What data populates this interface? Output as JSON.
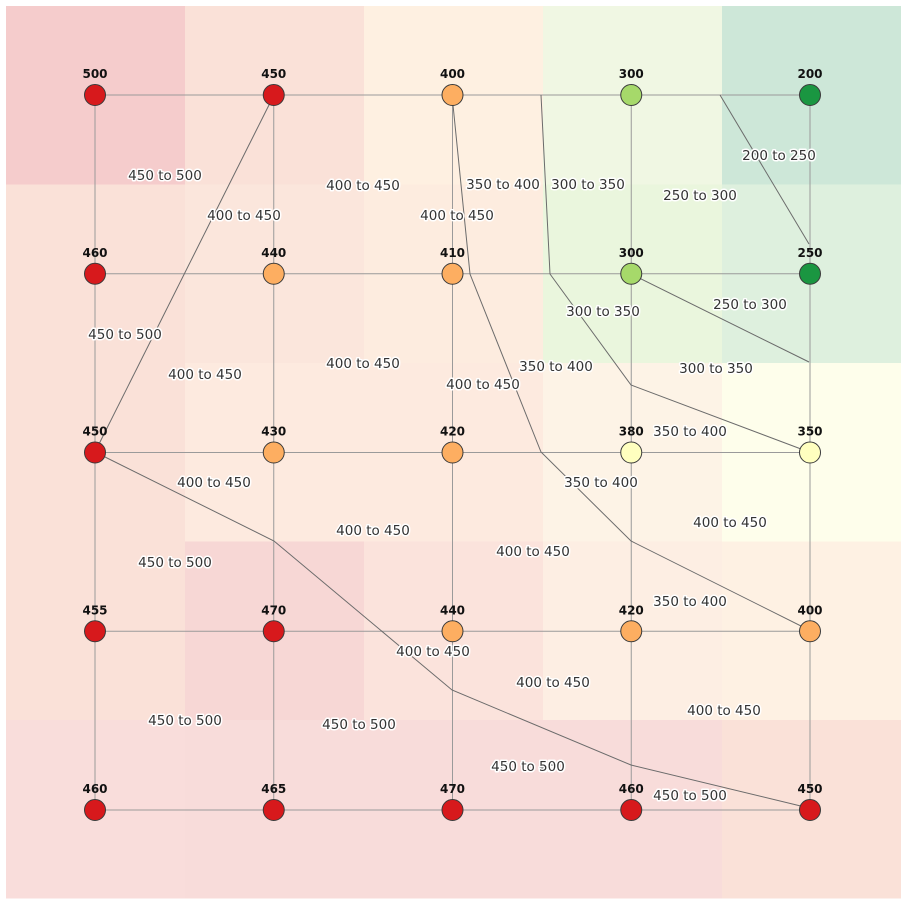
{
  "chart_data": {
    "type": "heatmap",
    "grid_cols": 5,
    "grid_rows": 5,
    "node_values": [
      [
        500,
        450,
        400,
        300,
        200
      ],
      [
        460,
        440,
        410,
        300,
        250
      ],
      [
        450,
        430,
        420,
        380,
        350
      ],
      [
        455,
        470,
        440,
        420,
        400
      ],
      [
        460,
        465,
        470,
        460,
        450
      ]
    ],
    "cell_colors": [
      [
        "#f5cccc",
        "#fae1d8",
        "#fef0e1",
        "#f0f7e3",
        "#cde7d8"
      ],
      [
        "#fae1d8",
        "#fbe6dc",
        "#fdecdf",
        "#eaf6dd",
        "#def0de"
      ],
      [
        "#fae1d8",
        "#fdeadf",
        "#fdeadf",
        "#fdf3e6",
        "#fefeeb"
      ],
      [
        "#fae1d8",
        "#f7d7d5",
        "#fbe3dc",
        "#fdeee3",
        "#fef1e3"
      ],
      [
        "#f9dddb",
        "#f8dcda",
        "#f8dcda",
        "#f8dcda",
        "#fae1d8"
      ]
    ],
    "node_colors": {
      "450 to 500": "#d7191c",
      "400 to 450": "#fdae61",
      "350 to 400": "#ffffbf",
      "300 to 350": "#a6d96a",
      "200 to 250": "#1a9641",
      "250 to 300": "#1a9641"
    },
    "contour_labels": [
      "450 to 500",
      "400 to 450",
      "400 to 450",
      "350 to 400",
      "300 to 350",
      "400 to 450",
      "250 to 300",
      "200 to 250",
      "450 to 500",
      "400 to 450",
      "400 to 450",
      "300 to 350",
      "250 to 300",
      "400 to 450",
      "350 to 400",
      "300 to 350",
      "350 to 400",
      "400 to 450",
      "350 to 400",
      "400 to 450",
      "450 to 500",
      "400 to 450",
      "400 to 450",
      "350 to 400",
      "400 to 450",
      "400 to 450",
      "450 to 500",
      "450 to 500",
      "400 to 450",
      "400 to 450",
      "450 to 500",
      "450 to 500"
    ]
  }
}
